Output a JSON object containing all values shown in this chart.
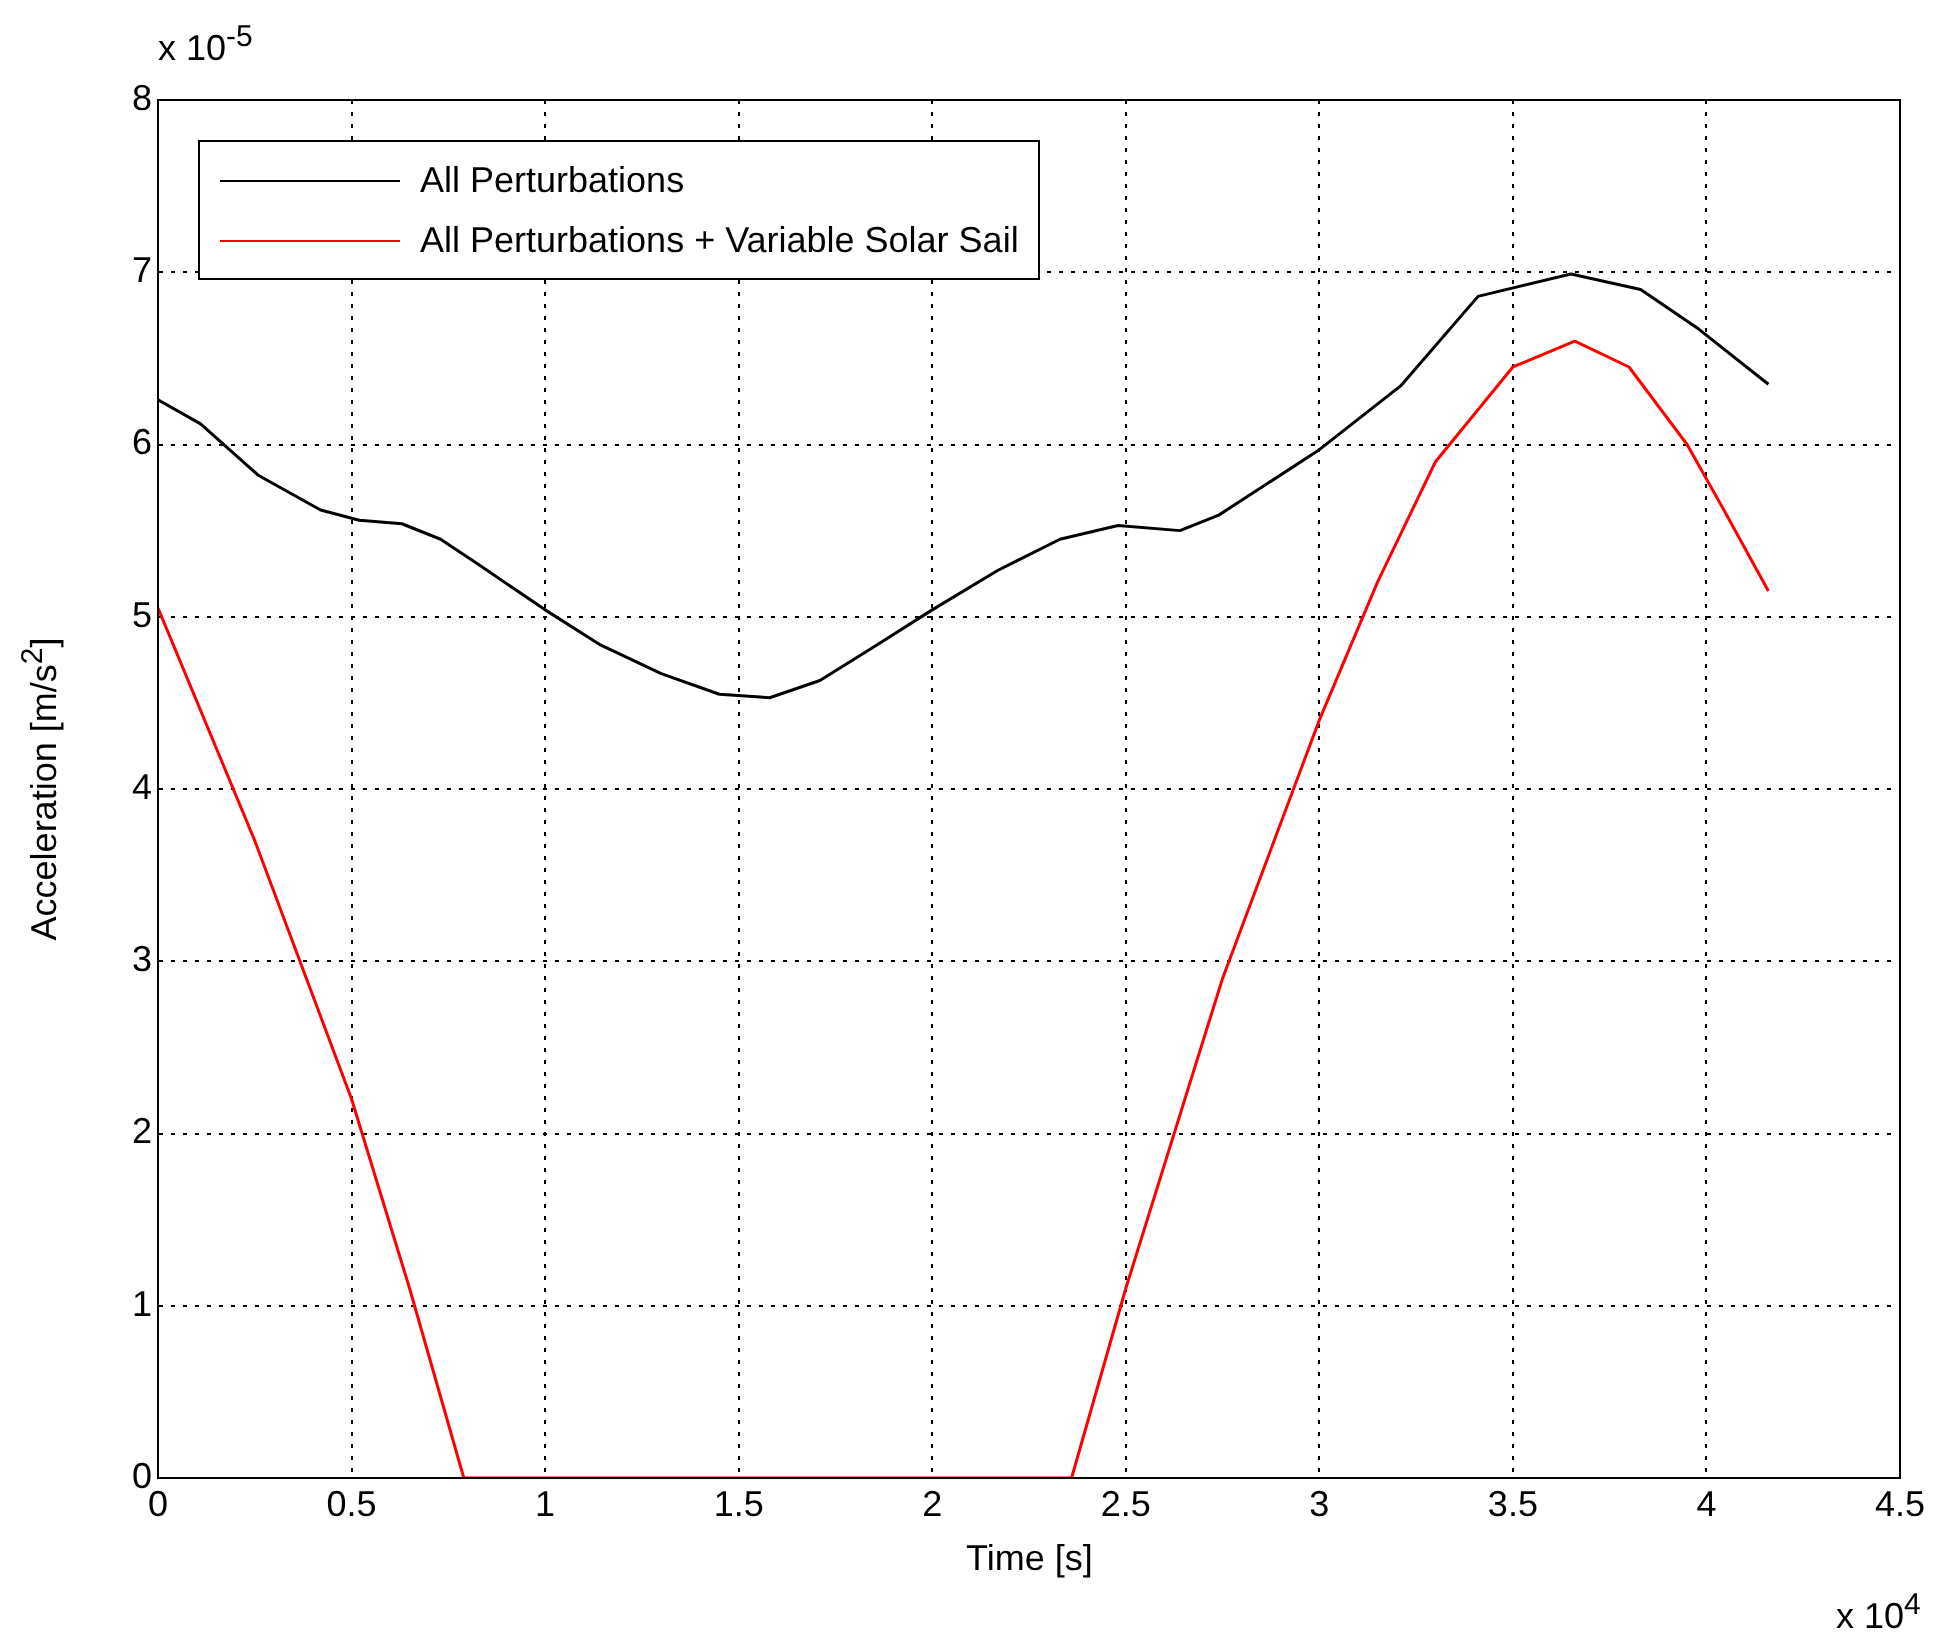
{
  "chart_data": {
    "type": "line",
    "xlabel": "Time [s]",
    "ylabel": "Acceleration [m/s$^{2}$]",
    "xlim": [
      0,
      4.5
    ],
    "xticks": [
      0,
      0.5,
      1,
      1.5,
      2,
      2.5,
      3,
      3.5,
      4,
      4.5
    ],
    "ylim": [
      0,
      8
    ],
    "yticks": [
      0,
      1,
      2,
      3,
      4,
      5,
      6,
      7,
      8
    ],
    "grid": true,
    "legend": "top left",
    "line_style": "solid",
    "marker": "none",
    "annotations": [
      "x 10$^{-5}$",
      "x 10$^{4}$"
    ],
    "series": [
      {
        "name": "All Perturbations",
        "color": "#000000",
        "x": [
          0,
          0.11,
          0.26,
          0.42,
          0.52,
          0.63,
          0.73,
          0.83,
          1.0,
          1.14,
          1.3,
          1.45,
          1.58,
          1.71,
          1.86,
          2.0,
          2.17,
          2.33,
          2.48,
          2.64,
          2.74,
          2.85,
          3.0,
          3.21,
          3.41,
          3.65,
          3.83,
          3.98,
          4.16
        ],
        "values": [
          6.26,
          6.12,
          5.82,
          5.62,
          5.56,
          5.54,
          5.45,
          5.3,
          5.04,
          4.84,
          4.67,
          4.55,
          4.53,
          4.63,
          4.84,
          5.04,
          5.27,
          5.45,
          5.53,
          5.5,
          5.59,
          5.75,
          5.97,
          6.34,
          6.86,
          6.99,
          6.9,
          6.67,
          6.35
        ]
      },
      {
        "name": "All Perturbations + Variable Solar Sail",
        "color": "#ff0000",
        "x": [
          0,
          0.25,
          0.5,
          0.65,
          0.79,
          1.5,
          2.36,
          2.5,
          2.75,
          3.0,
          3.15,
          3.3,
          3.5,
          3.66,
          3.8,
          3.95,
          4.05,
          4.16
        ],
        "values": [
          5.05,
          3.7,
          2.2,
          1.1,
          0,
          0,
          0,
          1.1,
          2.9,
          4.4,
          5.2,
          5.9,
          6.45,
          6.6,
          6.45,
          6.0,
          5.6,
          5.15
        ]
      }
    ]
  }
}
